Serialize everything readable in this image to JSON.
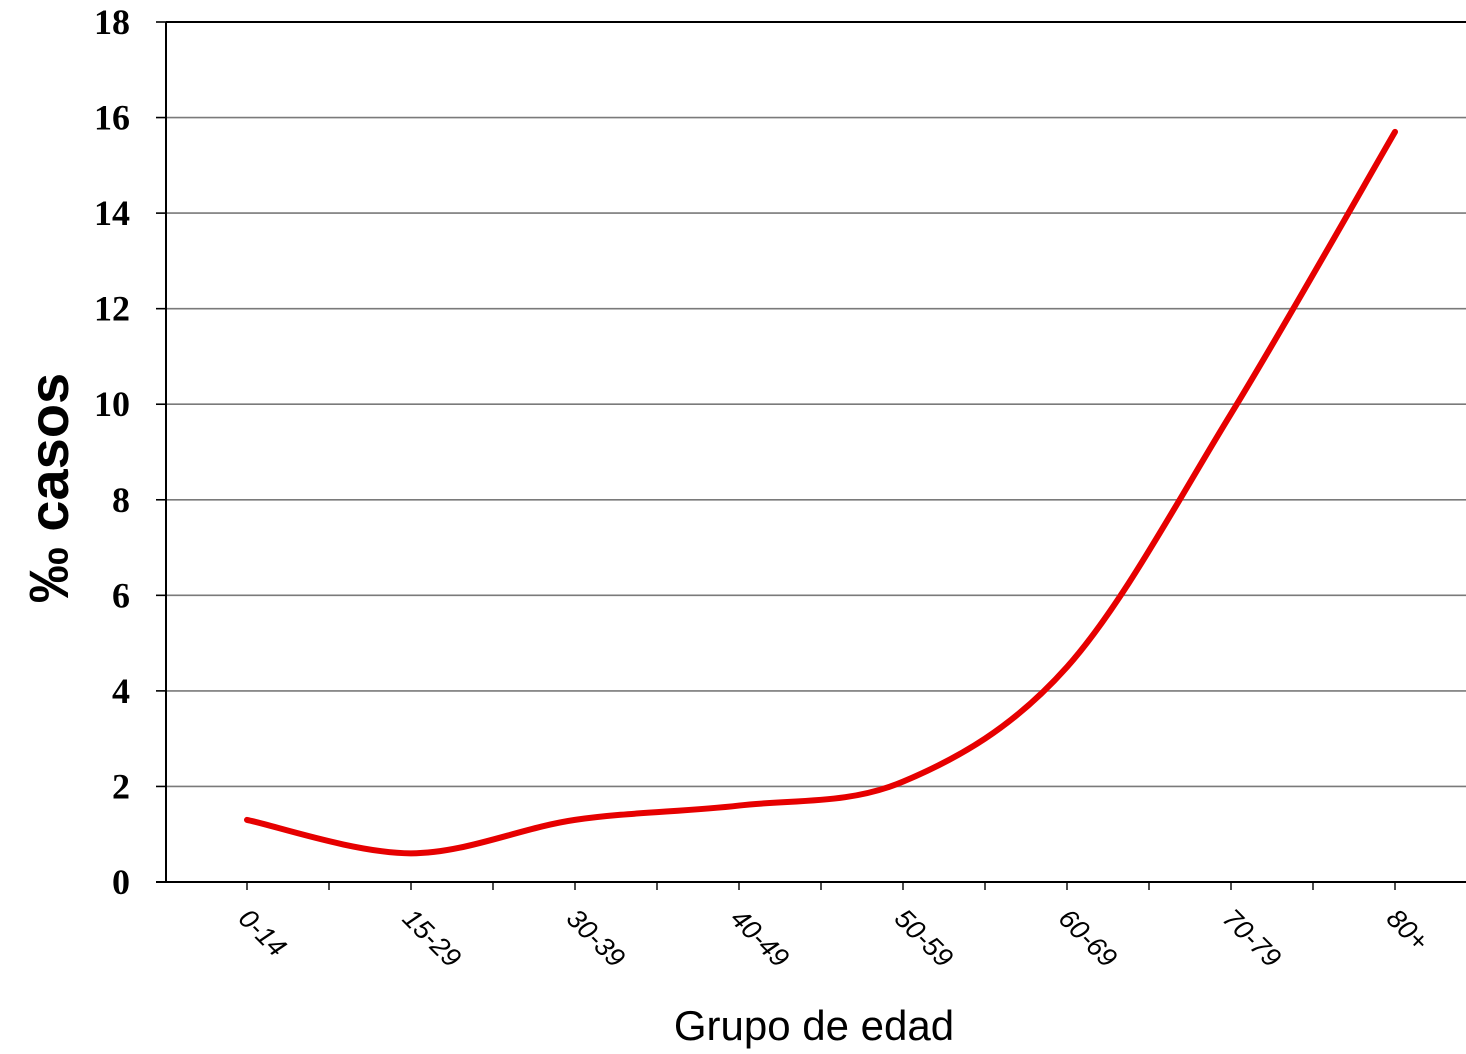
{
  "chart_data": {
    "type": "line",
    "categories": [
      "0-14",
      "15-29",
      "30-39",
      "40-49",
      "50-59",
      "60-69",
      "70-79",
      "80+"
    ],
    "series": [
      {
        "values": [
          1.3,
          0.6,
          1.3,
          1.6,
          2.1,
          4.5,
          9.8,
          15.7
        ],
        "color": "#e60000"
      }
    ],
    "title": "",
    "xlabel": "Grupo de edad",
    "ylabel": "‰ casos",
    "ylim": [
      0,
      18
    ],
    "yticks": [
      0,
      2,
      4,
      6,
      8,
      10,
      12,
      14,
      16,
      18
    ],
    "grid": true,
    "smooth": true
  }
}
